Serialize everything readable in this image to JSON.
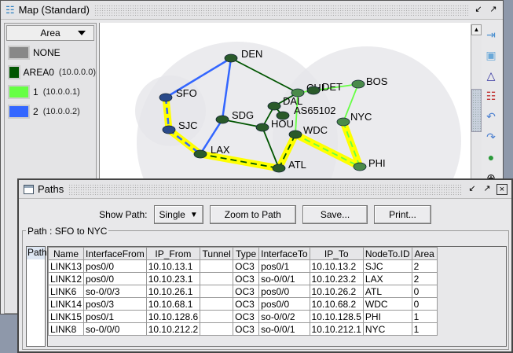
{
  "map_window": {
    "title": "Map (Standard)",
    "legend_selector": "Area",
    "legend": [
      {
        "label": "NONE",
        "sub": "",
        "color": "#888888"
      },
      {
        "label": "AREA0",
        "sub": "(10.0.0.0)",
        "color": "#005500"
      },
      {
        "label": "1",
        "sub": "(10.0.0.1)",
        "color": "#66ff44"
      },
      {
        "label": "2",
        "sub": "(10.0.0.2)",
        "color": "#3366ff"
      }
    ],
    "nodes": [
      "DEN",
      "SFO",
      "SJC",
      "LAX",
      "SDG",
      "HOU",
      "DAL",
      "AS65102",
      "CHI",
      "DET",
      "BOS",
      "NYC",
      "WDC",
      "ATL",
      "PHI"
    ],
    "edges": [
      [
        "SFO",
        "DEN",
        "2"
      ],
      [
        "SFO",
        "SJC",
        "2"
      ],
      [
        "SJC",
        "LAX",
        "2"
      ],
      [
        "DEN",
        "SDG",
        "2"
      ],
      [
        "SDG",
        "LAX",
        "2"
      ],
      [
        "DEN",
        "CHI",
        "AREA0"
      ],
      [
        "SDG",
        "HOU",
        "AREA0"
      ],
      [
        "HOU",
        "DAL",
        "AREA0"
      ],
      [
        "DAL",
        "CHI",
        "AREA0"
      ],
      [
        "DAL",
        "AS65102",
        "AREA0"
      ],
      [
        "HOU",
        "ATL",
        "AREA0"
      ],
      [
        "LAX",
        "ATL",
        "AREA0"
      ],
      [
        "ATL",
        "WDC",
        "AREA0"
      ],
      [
        "CHI",
        "WDC",
        "1"
      ],
      [
        "CHI",
        "BOS",
        "1"
      ],
      [
        "BOS",
        "NYC",
        "1"
      ],
      [
        "NYC",
        "PHI",
        "1"
      ],
      [
        "WDC",
        "PHI",
        "1"
      ]
    ],
    "highlighted_path": [
      "SFO",
      "SJC",
      "LAX",
      "ATL",
      "WDC",
      "PHI",
      "NYC"
    ],
    "path_color": "#ffff00",
    "toolbar_icons": [
      "fit-icon",
      "3d-box-icon",
      "layout-icon",
      "topology-icon",
      "undo-icon",
      "redo-icon",
      "globe-icon",
      "more-icon"
    ]
  },
  "paths_window": {
    "title": "Paths",
    "show_path_label": "Show Path:",
    "show_path_value": "Single",
    "zoom_button": "Zoom to Path",
    "save_button": "Save...",
    "print_button": "Print...",
    "group_label": "Path : SFO to NYC",
    "path_col": "Path",
    "columns": [
      "Name",
      "InterfaceFrom",
      "IP_From",
      "Tunnel",
      "Type",
      "InterfaceTo",
      "IP_To",
      "NodeTo.ID",
      "Area"
    ],
    "rows": [
      [
        "LINK13",
        "pos0/0",
        "10.10.13.1",
        "",
        "OC3",
        "pos0/1",
        "10.10.13.2",
        "SJC",
        "2"
      ],
      [
        "LINK12",
        "pos0/0",
        "10.10.23.1",
        "",
        "OC3",
        "so-0/0/1",
        "10.10.23.2",
        "LAX",
        "2"
      ],
      [
        "LINK6",
        "so-0/0/3",
        "10.10.26.1",
        "",
        "OC3",
        "pos0/0",
        "10.10.26.2",
        "ATL",
        "0"
      ],
      [
        "LINK14",
        "pos0/3",
        "10.10.68.1",
        "",
        "OC3",
        "pos0/0",
        "10.10.68.2",
        "WDC",
        "0"
      ],
      [
        "LINK15",
        "pos0/1",
        "10.10.128.6",
        "",
        "OC3",
        "so-0/0/2",
        "10.10.128.5",
        "PHI",
        "1"
      ],
      [
        "LINK8",
        "so-0/0/0",
        "10.10.212.2",
        "",
        "OC3",
        "so-0/0/1",
        "10.10.212.1",
        "NYC",
        "1"
      ]
    ]
  }
}
